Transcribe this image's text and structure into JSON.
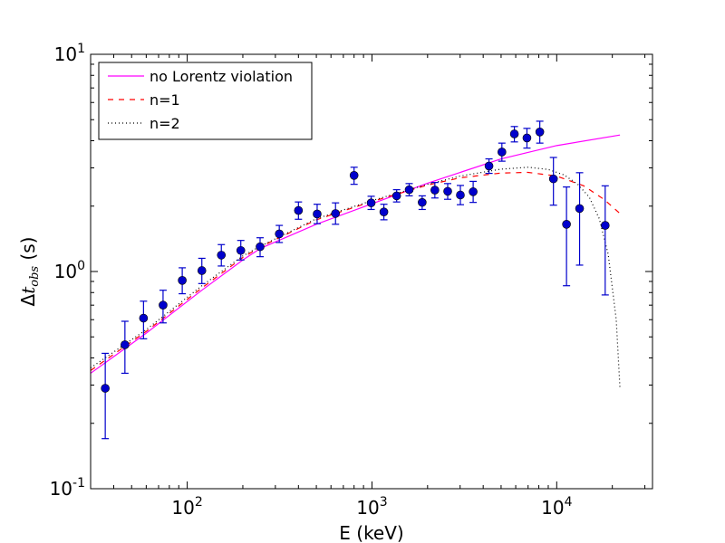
{
  "chart_data": {
    "type": "scatter",
    "title": "",
    "xlabel": "E (keV)",
    "ylabel_prefix": "Δ",
    "ylabel_var": "t",
    "ylabel_sub": "obs",
    "ylabel_unit": " (s)",
    "xscale": "log",
    "yscale": "log",
    "xlim": [
      30,
      33000
    ],
    "ylim": [
      0.1,
      10
    ],
    "x_ticks": [
      {
        "value": 100,
        "base": "10",
        "exp": "2"
      },
      {
        "value": 1000,
        "base": "10",
        "exp": "3"
      },
      {
        "value": 10000,
        "base": "10",
        "exp": "4"
      }
    ],
    "y_ticks": [
      {
        "value": 0.1,
        "base": "10",
        "exp": "-1"
      },
      {
        "value": 1,
        "base": "10",
        "exp": "0"
      },
      {
        "value": 10,
        "base": "10",
        "exp": "1"
      }
    ],
    "legend_position": "top-left",
    "data_points": {
      "name": "data",
      "color": "#0000cc",
      "points": [
        {
          "x": 36,
          "y": 0.29,
          "lo": 0.17,
          "hi": 0.42
        },
        {
          "x": 46,
          "y": 0.46,
          "lo": 0.34,
          "hi": 0.59
        },
        {
          "x": 58,
          "y": 0.61,
          "lo": 0.49,
          "hi": 0.73
        },
        {
          "x": 74,
          "y": 0.7,
          "lo": 0.58,
          "hi": 0.82
        },
        {
          "x": 94,
          "y": 0.91,
          "lo": 0.79,
          "hi": 1.04
        },
        {
          "x": 120,
          "y": 1.01,
          "lo": 0.88,
          "hi": 1.15
        },
        {
          "x": 153,
          "y": 1.19,
          "lo": 1.06,
          "hi": 1.33
        },
        {
          "x": 195,
          "y": 1.25,
          "lo": 1.13,
          "hi": 1.39
        },
        {
          "x": 248,
          "y": 1.3,
          "lo": 1.17,
          "hi": 1.43
        },
        {
          "x": 315,
          "y": 1.49,
          "lo": 1.36,
          "hi": 1.63
        },
        {
          "x": 400,
          "y": 1.91,
          "lo": 1.74,
          "hi": 2.09
        },
        {
          "x": 505,
          "y": 1.84,
          "lo": 1.66,
          "hi": 2.04
        },
        {
          "x": 635,
          "y": 1.85,
          "lo": 1.65,
          "hi": 2.07
        },
        {
          "x": 800,
          "y": 2.77,
          "lo": 2.52,
          "hi": 3.02
        },
        {
          "x": 990,
          "y": 2.07,
          "lo": 1.93,
          "hi": 2.22
        },
        {
          "x": 1160,
          "y": 1.88,
          "lo": 1.73,
          "hi": 2.04
        },
        {
          "x": 1360,
          "y": 2.23,
          "lo": 2.09,
          "hi": 2.38
        },
        {
          "x": 1590,
          "y": 2.38,
          "lo": 2.23,
          "hi": 2.54
        },
        {
          "x": 1870,
          "y": 2.08,
          "lo": 1.93,
          "hi": 2.23
        },
        {
          "x": 2190,
          "y": 2.37,
          "lo": 2.18,
          "hi": 2.57
        },
        {
          "x": 2570,
          "y": 2.34,
          "lo": 2.15,
          "hi": 2.54
        },
        {
          "x": 3010,
          "y": 2.25,
          "lo": 2.03,
          "hi": 2.49
        },
        {
          "x": 3530,
          "y": 2.33,
          "lo": 2.08,
          "hi": 2.6
        },
        {
          "x": 4300,
          "y": 3.06,
          "lo": 2.83,
          "hi": 3.3
        },
        {
          "x": 5050,
          "y": 3.55,
          "lo": 3.22,
          "hi": 3.9
        },
        {
          "x": 5900,
          "y": 4.3,
          "lo": 3.95,
          "hi": 4.65
        },
        {
          "x": 6900,
          "y": 4.12,
          "lo": 3.7,
          "hi": 4.56
        },
        {
          "x": 8100,
          "y": 4.39,
          "lo": 3.9,
          "hi": 4.92
        },
        {
          "x": 9600,
          "y": 2.67,
          "lo": 2.02,
          "hi": 3.35
        },
        {
          "x": 11300,
          "y": 1.65,
          "lo": 0.86,
          "hi": 2.45
        },
        {
          "x": 13300,
          "y": 1.95,
          "lo": 1.07,
          "hi": 2.85
        },
        {
          "x": 18300,
          "y": 1.63,
          "lo": 0.78,
          "hi": 2.48
        }
      ]
    },
    "series": [
      {
        "name": "no Lorentz violation",
        "color": "#ff00ff",
        "style": "solid",
        "points": [
          [
            30,
            0.34
          ],
          [
            60,
            0.52
          ],
          [
            120,
            0.82
          ],
          [
            200,
            1.13
          ],
          [
            250,
            1.28
          ],
          [
            500,
            1.65
          ],
          [
            1000,
            2.05
          ],
          [
            2000,
            2.55
          ],
          [
            5000,
            3.3
          ],
          [
            10000,
            3.8
          ],
          [
            22000,
            4.25
          ]
        ]
      },
      {
        "name": "n=1",
        "color": "#ff0000",
        "style": "dashed",
        "points": [
          [
            30,
            0.35
          ],
          [
            60,
            0.53
          ],
          [
            120,
            0.84
          ],
          [
            200,
            1.16
          ],
          [
            250,
            1.3
          ],
          [
            500,
            1.73
          ],
          [
            1000,
            2.1
          ],
          [
            2000,
            2.5
          ],
          [
            3000,
            2.7
          ],
          [
            5000,
            2.84
          ],
          [
            7000,
            2.86
          ],
          [
            10000,
            2.75
          ],
          [
            14000,
            2.48
          ],
          [
            18000,
            2.15
          ],
          [
            22000,
            1.85
          ]
        ]
      },
      {
        "name": "n=2",
        "color": "#000000",
        "style": "dotted",
        "points": [
          [
            30,
            0.36
          ],
          [
            60,
            0.54
          ],
          [
            120,
            0.86
          ],
          [
            200,
            1.18
          ],
          [
            250,
            1.31
          ],
          [
            500,
            1.75
          ],
          [
            1000,
            2.12
          ],
          [
            2000,
            2.52
          ],
          [
            3000,
            2.75
          ],
          [
            5000,
            2.96
          ],
          [
            7000,
            3.02
          ],
          [
            9000,
            2.95
          ],
          [
            11000,
            2.78
          ],
          [
            13000,
            2.52
          ],
          [
            15000,
            2.2
          ],
          [
            17000,
            1.75
          ],
          [
            19000,
            1.2
          ],
          [
            21000,
            0.6
          ],
          [
            22000,
            0.29
          ]
        ]
      }
    ]
  }
}
